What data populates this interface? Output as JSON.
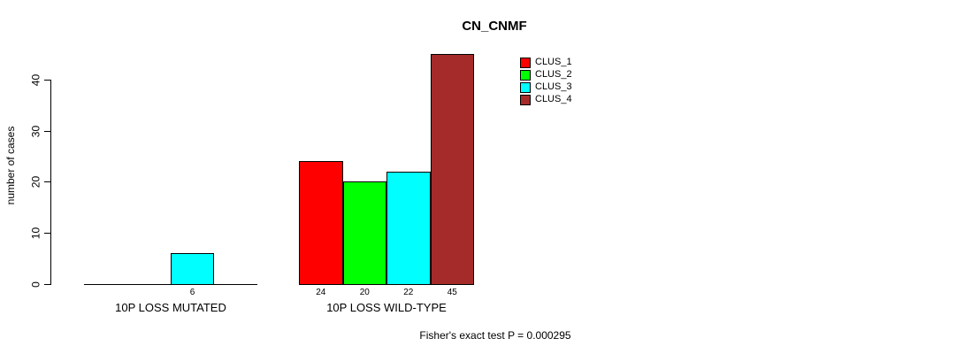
{
  "chart_data": {
    "type": "bar",
    "title": "CN_CNMF",
    "ylabel": "number of cases",
    "xlabel": "",
    "ylim": [
      0,
      45
    ],
    "yticks": [
      0,
      10,
      20,
      30,
      40
    ],
    "grid": false,
    "legend_position": "top-right",
    "categories": [
      "10P LOSS MUTATED",
      "10P LOSS WILD-TYPE"
    ],
    "series": [
      {
        "name": "CLUS_1",
        "color": "#FF0000",
        "values": [
          0,
          24
        ]
      },
      {
        "name": "CLUS_2",
        "color": "#00FF00",
        "values": [
          0,
          20
        ]
      },
      {
        "name": "CLUS_3",
        "color": "#00FFFF",
        "values": [
          6,
          22
        ]
      },
      {
        "name": "CLUS_4",
        "color": "#A52A2A",
        "values": [
          0,
          45
        ]
      }
    ],
    "bar_labels": [
      [
        "",
        "",
        "6",
        ""
      ],
      [
        "24",
        "20",
        "22",
        "45"
      ]
    ],
    "annotation": "Fisher's exact test P = 0.000295",
    "axis_color": "#000000",
    "background_color": "#FFFFFF"
  }
}
